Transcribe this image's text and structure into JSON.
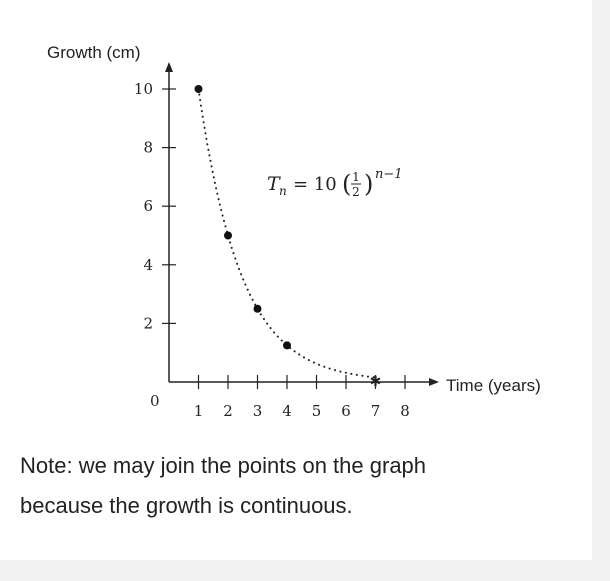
{
  "chart_data": {
    "type": "scatter",
    "ylabel": "Growth (cm)",
    "xlabel": "Time (years)",
    "x_ticks": [
      "1",
      "2",
      "3",
      "4",
      "5",
      "6",
      "7",
      "8"
    ],
    "y_ticks": [
      "2",
      "4",
      "6",
      "8",
      "10"
    ],
    "origin_label": "0",
    "xlim": [
      0,
      8
    ],
    "ylim": [
      0,
      10
    ],
    "series": [
      {
        "points": [
          {
            "x": 1,
            "y": 10
          },
          {
            "x": 2,
            "y": 5
          },
          {
            "x": 3,
            "y": 2.5
          },
          {
            "x": 4,
            "y": 1.25
          }
        ],
        "marker": "dot"
      }
    ],
    "curve": {
      "style": "dotted",
      "formula": "T_n = 10 (1/2)^(n-1)",
      "x_range": [
        1,
        7
      ]
    },
    "end_marker": {
      "x": 7,
      "symbol": "star"
    },
    "annotation": {
      "lhs": "T",
      "subscript": "n",
      "equals": "= 10",
      "frac_num": "1",
      "frac_den": "2",
      "exponent": "n−1"
    }
  },
  "note": {
    "line1": "Note: we may join the points on the graph",
    "line2": "because the growth is continuous."
  }
}
